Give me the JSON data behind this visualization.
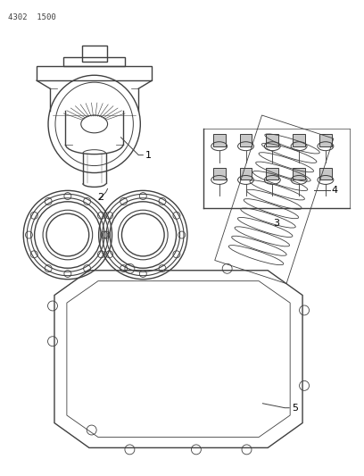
{
  "title": "4302  1500",
  "bg_color": "#ffffff",
  "line_color": "#404040",
  "label_color": "#000000",
  "fig_w": 4.08,
  "fig_h": 5.33,
  "dpi": 100
}
